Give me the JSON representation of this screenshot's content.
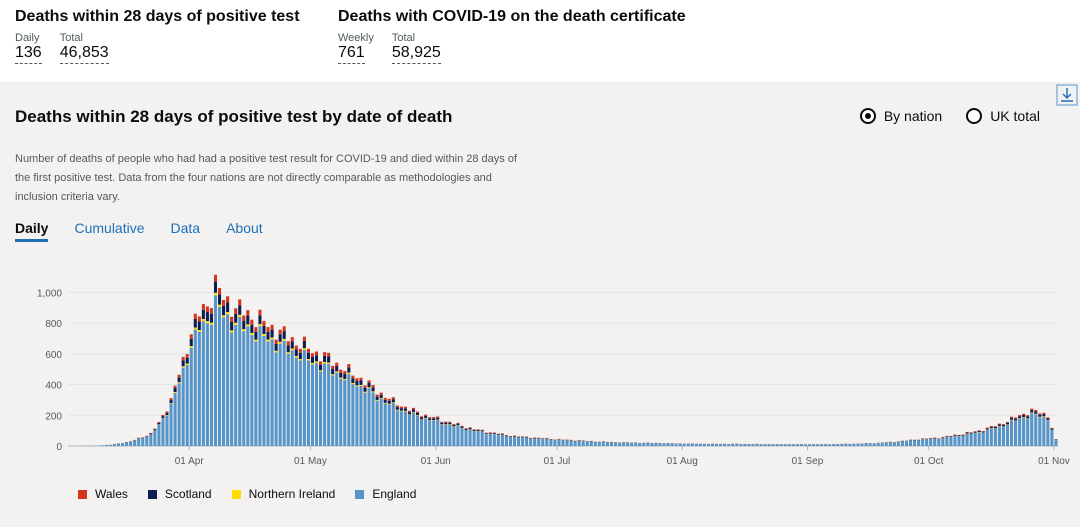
{
  "headlines": [
    {
      "title": "Deaths within 28 days of positive test",
      "stats": [
        {
          "label": "Daily",
          "value": "136"
        },
        {
          "label": "Total",
          "value": "46,853"
        }
      ]
    },
    {
      "title": "Deaths with COVID-19 on the death certificate",
      "stats": [
        {
          "label": "Weekly",
          "value": "761"
        },
        {
          "label": "Total",
          "value": "58,925"
        }
      ]
    }
  ],
  "card": {
    "title": "Deaths within 28 days of positive test by date of death",
    "download_icon": "download-icon",
    "radios": [
      {
        "label": "By nation",
        "checked": true
      },
      {
        "label": "UK total",
        "checked": false
      }
    ],
    "description": "Number of deaths of people who had had a positive test result for COVID-19 and died within 28 days of the first positive test. Data from the four nations are not directly comparable as methodologies and inclusion criteria vary.",
    "tabs": [
      "Daily",
      "Cumulative",
      "Data",
      "About"
    ],
    "active_tab": "Daily"
  },
  "chart_data": {
    "type": "bar",
    "stacked": true,
    "x_start": "2020-03-02",
    "x_end": "2020-11-01",
    "x_ticks": [
      "01 Apr",
      "01 May",
      "01 Jun",
      "01 Jul",
      "01 Aug",
      "01 Sep",
      "01 Oct",
      "01 Nov"
    ],
    "y_ticks": [
      "0",
      "200",
      "400",
      "600",
      "800",
      "1,000"
    ],
    "ylim": [
      0,
      1100
    ],
    "grid": true,
    "legend_position": "bottom-left",
    "totals_key_points": [
      [
        0,
        0
      ],
      [
        5,
        1
      ],
      [
        10,
        8
      ],
      [
        15,
        30
      ],
      [
        20,
        80
      ],
      [
        22,
        150
      ],
      [
        25,
        300
      ],
      [
        28,
        550
      ],
      [
        30,
        750
      ],
      [
        32,
        860
      ],
      [
        34,
        920
      ],
      [
        36,
        1050
      ],
      [
        38,
        960
      ],
      [
        41,
        900
      ],
      [
        44,
        860
      ],
      [
        47,
        820
      ],
      [
        52,
        740
      ],
      [
        56,
        680
      ],
      [
        60,
        620
      ],
      [
        64,
        570
      ],
      [
        68,
        500
      ],
      [
        72,
        440
      ],
      [
        76,
        360
      ],
      [
        80,
        290
      ],
      [
        84,
        240
      ],
      [
        88,
        200
      ],
      [
        92,
        170
      ],
      [
        96,
        140
      ],
      [
        100,
        110
      ],
      [
        105,
        85
      ],
      [
        110,
        65
      ],
      [
        115,
        55
      ],
      [
        120,
        45
      ],
      [
        125,
        38
      ],
      [
        130,
        30
      ],
      [
        135,
        25
      ],
      [
        140,
        22
      ],
      [
        145,
        20
      ],
      [
        150,
        17
      ],
      [
        155,
        15
      ],
      [
        160,
        14
      ],
      [
        165,
        14
      ],
      [
        170,
        13
      ],
      [
        175,
        12
      ],
      [
        180,
        12
      ],
      [
        185,
        12
      ],
      [
        190,
        13
      ],
      [
        195,
        16
      ],
      [
        200,
        20
      ],
      [
        205,
        30
      ],
      [
        210,
        45
      ],
      [
        215,
        55
      ],
      [
        220,
        75
      ],
      [
        225,
        100
      ],
      [
        230,
        140
      ],
      [
        235,
        200
      ],
      [
        238,
        230
      ],
      [
        240,
        220
      ],
      [
        242,
        200
      ],
      [
        243,
        120
      ],
      [
        244,
        40
      ]
    ],
    "series": [
      {
        "name": "England",
        "color": "#5694ca",
        "share": 0.88
      },
      {
        "name": "Northern Ireland",
        "color": "#ffdd00",
        "share": 0.015
      },
      {
        "name": "Scotland",
        "color": "#0b1d51",
        "share": 0.065
      },
      {
        "name": "Wales",
        "color": "#d4351c",
        "share": 0.04
      }
    ]
  }
}
